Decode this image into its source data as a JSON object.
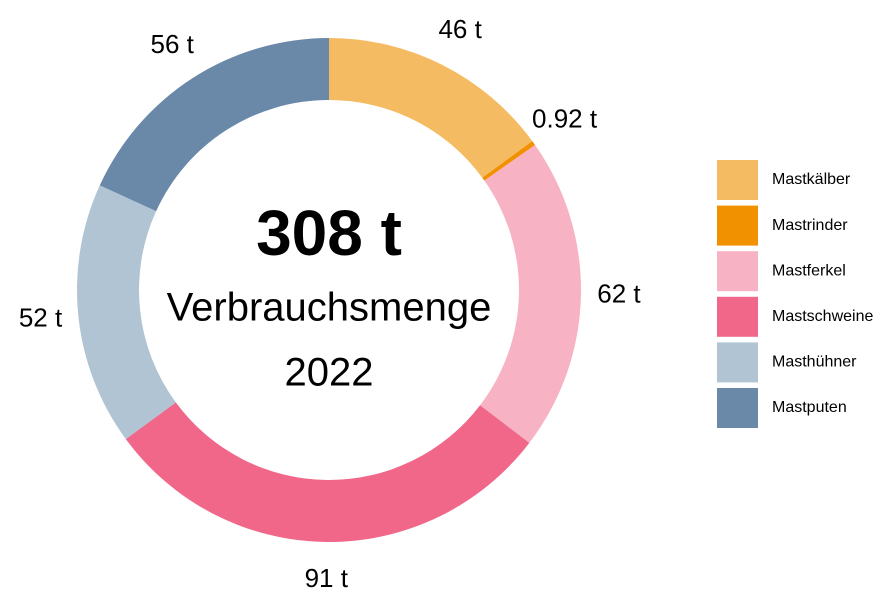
{
  "chart_data": {
    "type": "donut",
    "center_text": [
      "308 t",
      "Verbrauchsmenge",
      "2022"
    ],
    "categories": [
      "Mastkälber",
      "Mastrinder",
      "Mastferkel",
      "Mastschweine",
      "Masthühner",
      "Mastputen"
    ],
    "values": [
      46,
      0.92,
      62,
      91,
      52,
      56
    ],
    "value_labels": [
      "46 t",
      "0.92 t",
      "62 t",
      "91 t",
      "52 t",
      "56 t"
    ],
    "colors": [
      "#f5bb62",
      "#f29100",
      "#f7b2c4",
      "#f0678a",
      "#b0c4d4",
      "#6a89a8"
    ],
    "legend": "right"
  }
}
